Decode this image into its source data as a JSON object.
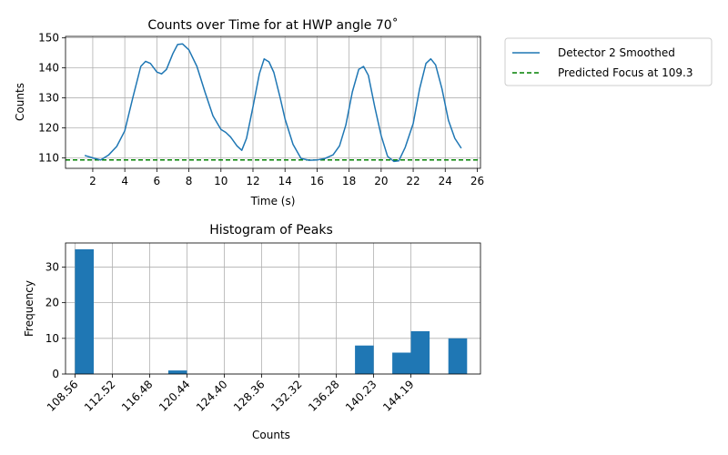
{
  "chart_data": [
    {
      "type": "line",
      "title": "Counts over Time for at HWP angle 70˚",
      "xlabel": "Time (s)",
      "ylabel": "Counts",
      "xlim": [
        0.3,
        26.2
      ],
      "ylim": [
        106.5,
        150.5
      ],
      "xticks": [
        2,
        4,
        6,
        8,
        10,
        12,
        14,
        16,
        18,
        20,
        22,
        24,
        26
      ],
      "yticks": [
        110,
        120,
        130,
        140,
        150
      ],
      "grid": true,
      "legend_position": "outside-right",
      "series": [
        {
          "name": "Detector 2 Smoothed",
          "color": "#1f77b4",
          "style": "solid",
          "x": [
            1.5,
            2.0,
            2.5,
            3.0,
            3.5,
            4.0,
            4.5,
            5.0,
            5.3,
            5.6,
            6.0,
            6.3,
            6.6,
            7.0,
            7.3,
            7.6,
            8.0,
            8.5,
            9.0,
            9.5,
            10.0,
            10.3,
            10.6,
            11.0,
            11.3,
            11.6,
            12.0,
            12.4,
            12.7,
            13.0,
            13.3,
            13.7,
            14.0,
            14.5,
            15.0,
            15.5,
            16.0,
            16.5,
            17.0,
            17.4,
            17.8,
            18.2,
            18.6,
            18.9,
            19.2,
            19.6,
            20.0,
            20.4,
            20.8,
            21.1,
            21.5,
            22.0,
            22.4,
            22.8,
            23.1,
            23.4,
            23.8,
            24.2,
            24.6,
            25.0
          ],
          "y": [
            110.8,
            110.0,
            109.3,
            111.0,
            113.8,
            119.0,
            130.0,
            140.5,
            142.2,
            141.5,
            138.6,
            138.0,
            139.5,
            144.8,
            147.8,
            148.0,
            146.0,
            140.5,
            132.0,
            124.0,
            119.5,
            118.5,
            117.0,
            114.0,
            112.5,
            116.5,
            127.0,
            138.0,
            143.0,
            142.0,
            138.5,
            130.0,
            123.0,
            114.5,
            109.8,
            109.2,
            109.3,
            109.8,
            111.0,
            114.0,
            121.0,
            132.0,
            139.5,
            140.5,
            137.5,
            127.0,
            117.5,
            110.5,
            108.8,
            109.0,
            113.5,
            121.5,
            133.0,
            141.5,
            143.0,
            141.0,
            133.0,
            122.5,
            116.5,
            113.2
          ]
        },
        {
          "name": "Predicted Focus at 109.3",
          "color": "#008000",
          "style": "dashed",
          "y_constant": 109.3
        }
      ]
    },
    {
      "type": "bar",
      "title": "Histogram of Peaks",
      "xlabel": "Counts",
      "ylabel": "Frequency",
      "xlim": [
        107.56,
        151.57
      ],
      "ylim": [
        0,
        36.75
      ],
      "bin_width": 1.99,
      "xticks": [
        108.56,
        112.52,
        116.48,
        120.44,
        124.4,
        128.36,
        132.32,
        136.28,
        140.23,
        144.19
      ],
      "xtick_labels": [
        "108.56",
        "112.52",
        "116.48",
        "120.44",
        "124.40",
        "128.36",
        "132.32",
        "136.28",
        "140.23",
        "144.19"
      ],
      "yticks": [
        0,
        10,
        20,
        30
      ],
      "grid": true,
      "color": "#1f77b4",
      "bars": [
        {
          "left": 108.56,
          "value": 35
        },
        {
          "left": 118.46,
          "value": 1
        },
        {
          "left": 138.26,
          "value": 8
        },
        {
          "left": 142.22,
          "value": 6
        },
        {
          "left": 144.19,
          "value": 12
        },
        {
          "left": 148.16,
          "value": 10
        }
      ]
    }
  ]
}
